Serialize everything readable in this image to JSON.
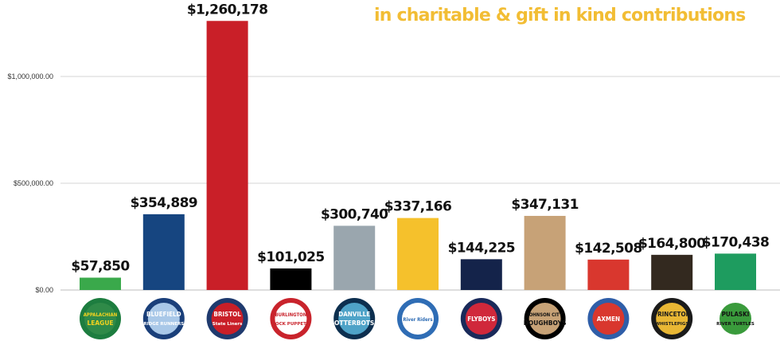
{
  "headline": "in charitable & gift in kind contributions",
  "chart_data": {
    "type": "bar",
    "title": "",
    "xlabel": "",
    "ylabel": "",
    "ylim": [
      0,
      1300000
    ],
    "y_ticks": [
      0,
      500000,
      1000000
    ],
    "y_tick_labels": [
      "$0.00",
      "$500,000.00",
      "$1,000,000.00"
    ],
    "grid": true,
    "legend": "none",
    "categories": [
      "Appalachian League",
      "Bluefield Ridge Runners",
      "Bristol State Liners",
      "Burlington Sock Puppets",
      "Danville Otterbots",
      "River Riders",
      "Flyboys",
      "Johnson City Doughboys",
      "Axmen",
      "Princeton WhistlePigs",
      "Pulaski River Turtles"
    ],
    "values": [
      57850,
      354889,
      1260178,
      101025,
      300740,
      337166,
      144225,
      347131,
      142508,
      164800,
      170438
    ],
    "data_labels": [
      "$57,850",
      "$354,889",
      "$1,260,178",
      "$101,025",
      "$300,740",
      "$337,166",
      "$144,225",
      "$347,131",
      "$142,508",
      "$164,800",
      "$170,438"
    ],
    "colors": [
      "#3aa94b",
      "#164580",
      "#c91f28",
      "#000000",
      "#9aa6ae",
      "#f5c12c",
      "#14234a",
      "#c7a277",
      "#d9372e",
      "#33291f",
      "#1e9c5f"
    ],
    "logos": [
      {
        "top": "APPALACHIAN",
        "bottom": "LEAGUE",
        "ring": "#1d7d3f",
        "fill": "#2f8a48",
        "text": "#f3d21f"
      },
      {
        "top": "BLUEFIELD",
        "bottom": "RIDGE RUNNERS",
        "ring": "#1a3f7a",
        "fill": "#a9c8e8",
        "text": "#ffffff"
      },
      {
        "top": "BRISTOL",
        "bottom": "State Liners",
        "ring": "#1f3a6e",
        "fill": "#c91f28",
        "text": "#ffffff"
      },
      {
        "top": "BURLINGTON",
        "bottom": "SOCK PUPPETS",
        "ring": "#c9242c",
        "fill": "#ffffff",
        "text": "#c9242c"
      },
      {
        "top": "DANVILLE",
        "bottom": "OTTERBOTS",
        "ring": "#0d2f4f",
        "fill": "#4fa3c8",
        "text": "#ffffff"
      },
      {
        "top": "River Riders",
        "bottom": "",
        "ring": "#2f6db5",
        "fill": "#ffffff",
        "text": "#2f6db5"
      },
      {
        "top": "FLYBOYS",
        "bottom": "",
        "ring": "#1a2a5a",
        "fill": "#d0283b",
        "text": "#ffffff"
      },
      {
        "top": "JOHNSON CITY",
        "bottom": "DOUGHBOYS",
        "ring": "#000000",
        "fill": "#c7a277",
        "text": "#111111"
      },
      {
        "top": "AXMEN",
        "bottom": "",
        "ring": "#2f5ea8",
        "fill": "#d9372e",
        "text": "#ffffff"
      },
      {
        "top": "PRINCETON",
        "bottom": "WHISTLEPIGS",
        "ring": "#1b1b1b",
        "fill": "#e9b734",
        "text": "#1b1b1b"
      },
      {
        "top": "PULASKI",
        "bottom": "RIVER TURTLES",
        "ring": "#ffffff",
        "fill": "#3a9b3c",
        "text": "#111111"
      }
    ]
  }
}
